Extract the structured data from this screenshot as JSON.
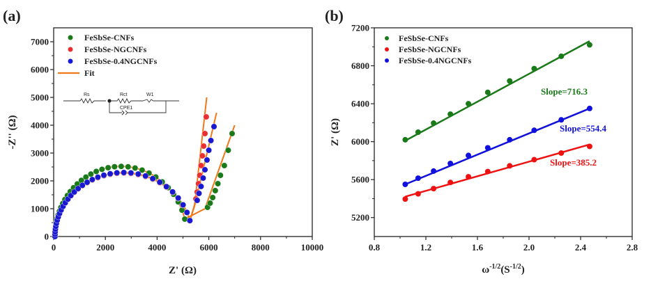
{
  "chart_data": [
    {
      "type": "scatter",
      "panel_label": "(a)",
      "title": "",
      "xlabel": "Z' (Ω)",
      "ylabel": "-Z'' (Ω)",
      "xlim": [
        0,
        10000
      ],
      "ylim": [
        0,
        7500
      ],
      "xticks": [
        0,
        2000,
        4000,
        6000,
        8000,
        10000
      ],
      "xtick_labels": [
        "0",
        "2000",
        "4000",
        "6000",
        "8000",
        "10000"
      ],
      "yticks": [
        0,
        1000,
        2000,
        3000,
        4000,
        5000,
        6000,
        7000
      ],
      "ytick_labels": [
        "0",
        "1000",
        "2000",
        "3000",
        "4000",
        "5000",
        "6000",
        "7000"
      ],
      "legend_position": "top-left",
      "legend": [
        "FeSbSe-CNFs",
        "FeSbSe-NGCNFs",
        "FeSbSe-0.4NGCNFs",
        "Fit"
      ],
      "fit_color": "#f07818",
      "inset_circuit": {
        "labels": [
          "Rs",
          "Rct",
          "W1",
          "CPE1"
        ]
      },
      "series": [
        {
          "name": "FeSbSe-CNFs",
          "color": "#1a7a1a",
          "semicircle": {
            "rs": 50,
            "rct": 5100,
            "peak": 2520
          },
          "tail": {
            "start_x": 5850,
            "start_y": 1000,
            "end_x": 7000,
            "end_y": 4000
          },
          "tail_points": [
            [
              5950,
              1050
            ],
            [
              6050,
              1200
            ],
            [
              6150,
              1400
            ],
            [
              6250,
              1650
            ],
            [
              6350,
              1900
            ],
            [
              6450,
              2200
            ],
            [
              6600,
              2550
            ],
            [
              6750,
              3100
            ],
            [
              6900,
              3700
            ]
          ]
        },
        {
          "name": "FeSbSe-NGCNFs",
          "color": "#e83030",
          "semicircle": {
            "rs": 50,
            "rct": 5300,
            "peak": 2280
          },
          "tail": {
            "start_x": 5450,
            "start_y": 1150,
            "end_x": 5920,
            "end_y": 5000
          },
          "tail_points": [
            [
              5500,
              1350
            ],
            [
              5550,
              1600
            ],
            [
              5600,
              1900
            ],
            [
              5650,
              2200
            ],
            [
              5700,
              2550
            ],
            [
              5750,
              2900
            ],
            [
              5800,
              3250
            ],
            [
              5850,
              3700
            ],
            [
              5900,
              4300
            ]
          ]
        },
        {
          "name": "FeSbSe-0.4NGCNFs",
          "color": "#1818d0",
          "semicircle": {
            "rs": 50,
            "rct": 5300,
            "peak": 2300
          },
          "tail": {
            "start_x": 5450,
            "start_y": 1100,
            "end_x": 6300,
            "end_y": 4450
          },
          "tail_points": [
            [
              5550,
              1300
            ],
            [
              5620,
              1550
            ],
            [
              5700,
              1800
            ],
            [
              5780,
              2100
            ],
            [
              5850,
              2400
            ],
            [
              5930,
              2750
            ],
            [
              6000,
              3100
            ],
            [
              6080,
              3450
            ],
            [
              6200,
              3950
            ]
          ]
        }
      ]
    },
    {
      "type": "scatter",
      "panel_label": "(b)",
      "title": "",
      "xlabel_base": "ω",
      "xlabel_sup1": "-1/2",
      "xlabel_mid": "(S",
      "xlabel_sup2": "-1/2",
      "xlabel_end": ")",
      "ylabel": "Z' (Ω)",
      "xlim": [
        0.8,
        2.8
      ],
      "ylim": [
        5000,
        7200
      ],
      "xticks": [
        0.8,
        1.2,
        1.6,
        2.0,
        2.4,
        2.8
      ],
      "xtick_labels": [
        "0.8",
        "1.2",
        "1.6",
        "2.0",
        "2.4",
        "2.8"
      ],
      "yticks": [
        5200,
        5600,
        6000,
        6400,
        6800,
        7200
      ],
      "ytick_labels": [
        "5200",
        "5600",
        "6000",
        "6400",
        "6800",
        "7200"
      ],
      "legend_position": "top-left",
      "x": [
        1.04,
        1.14,
        1.26,
        1.39,
        1.53,
        1.68,
        1.85,
        2.04,
        2.25,
        2.47
      ],
      "series": [
        {
          "name": "FeSbSe-CNFs",
          "color": "#1a7a1a",
          "slope_label": "Slope=716.3",
          "values": [
            6020,
            6100,
            6195,
            6290,
            6400,
            6520,
            6640,
            6770,
            6900,
            7020
          ],
          "fit": [
            6010,
            7060
          ]
        },
        {
          "name": "FeSbSe-NGCNFs",
          "color": "#ee1111",
          "slope_label": "Slope=385.2",
          "values": [
            5395,
            5450,
            5505,
            5570,
            5630,
            5685,
            5745,
            5810,
            5880,
            5950
          ],
          "fit": [
            5420,
            5970
          ]
        },
        {
          "name": "FeSbSe-0.4NGCNFs",
          "color": "#1111dd",
          "slope_label": "Slope=554.4",
          "values": [
            5550,
            5615,
            5690,
            5770,
            5855,
            5935,
            6020,
            6120,
            6230,
            6350
          ],
          "fit": [
            5550,
            6350
          ]
        }
      ]
    }
  ]
}
